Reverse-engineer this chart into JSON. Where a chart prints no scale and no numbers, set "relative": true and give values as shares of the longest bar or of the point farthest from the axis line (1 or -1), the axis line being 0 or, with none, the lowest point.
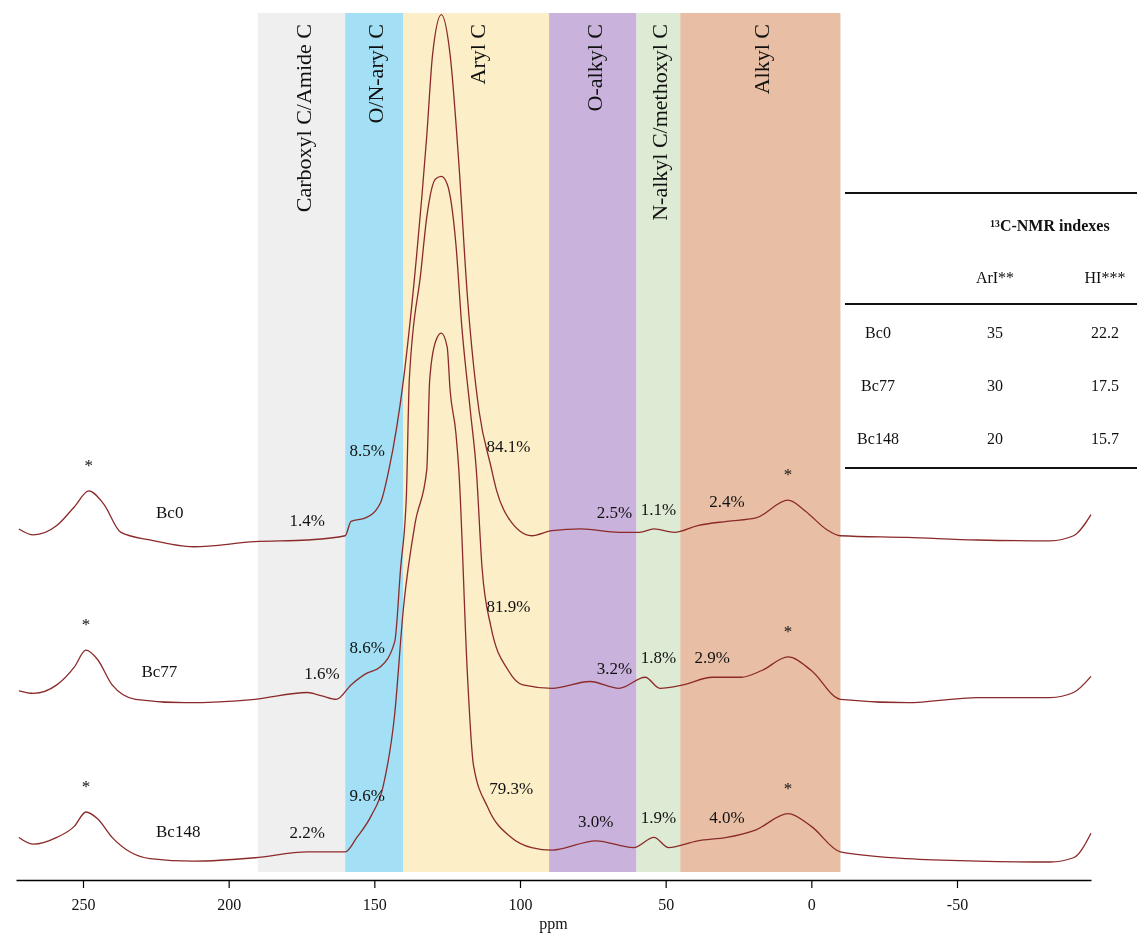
{
  "chart_data": [
    {
      "type": "line",
      "relative": true,
      "xlabel": "ppm",
      "xlim": [
        273,
        -96
      ],
      "xticks": [
        250,
        200,
        150,
        100,
        50,
        0,
        -50
      ],
      "marker": "none",
      "line_style": "solid",
      "bands": [
        {
          "axis": "x",
          "from": 190,
          "to": 160,
          "label": "Carboxyl C/Amide C",
          "color": "#efefef"
        },
        {
          "axis": "x",
          "from": 160,
          "to": 140,
          "label": "O/N-aryl C",
          "color": "#a3e0f5"
        },
        {
          "axis": "x",
          "from": 140,
          "to": 90,
          "label": "Aryl C",
          "color": "#fcefc8"
        },
        {
          "axis": "x",
          "from": 90,
          "to": 60,
          "label": "O-alkyl C",
          "color": "#c9b3dc"
        },
        {
          "axis": "x",
          "from": 60,
          "to": 45,
          "label": "N-alkyl C/methoxyl C",
          "color": "#deebd4"
        },
        {
          "axis": "x",
          "from": 45,
          "to": -10,
          "label": "Alkyl C",
          "color": "#e8bfa4"
        }
      ],
      "series": [
        {
          "name": "Bc0",
          "color": "#8b2a2a",
          "x": [
            272,
            267,
            259,
            253,
            248,
            243,
            237,
            227,
            212,
            191,
            173,
            160,
            158,
            153,
            148,
            145,
            140,
            136,
            132,
            130,
            127,
            124,
            121,
            118,
            114,
            110,
            108,
            104,
            96,
            89,
            79,
            66,
            59,
            54,
            47,
            39,
            29,
            19,
            8,
            2,
            -5,
            -10,
            -33,
            -57,
            -82,
            -90,
            -96
          ],
          "values": [
            0.393,
            0.386,
            0.397,
            0.419,
            0.438,
            0.423,
            0.389,
            0.38,
            0.372,
            0.378,
            0.38,
            0.385,
            0.402,
            0.406,
            0.423,
            0.463,
            0.569,
            0.697,
            0.857,
            0.953,
            1,
            0.953,
            0.825,
            0.665,
            0.531,
            0.467,
            0.438,
            0.406,
            0.385,
            0.391,
            0.393,
            0.389,
            0.389,
            0.393,
            0.389,
            0.397,
            0.402,
            0.406,
            0.427,
            0.414,
            0.393,
            0.385,
            0.383,
            0.38,
            0.379,
            0.385,
            0.41
          ]
        },
        {
          "name": "Bc77",
          "color": "#8b2a2a",
          "x": [
            272,
            267,
            259,
            253,
            249,
            245,
            240,
            232,
            215,
            191,
            173,
            168,
            163,
            158,
            153,
            148,
            143,
            141,
            139,
            138,
            134,
            132,
            129,
            127,
            125,
            122,
            120,
            117,
            115,
            113,
            110,
            104,
            99,
            89,
            76,
            66,
            57,
            52,
            44,
            34,
            24,
            17,
            8,
            0,
            -10,
            -33,
            -57,
            -82,
            -90,
            -96
          ],
          "values": [
            0.202,
            0.199,
            0.209,
            0.23,
            0.25,
            0.239,
            0.209,
            0.192,
            0.188,
            0.192,
            0.2,
            0.196,
            0.192,
            0.209,
            0.222,
            0.23,
            0.26,
            0.346,
            0.432,
            0.569,
            0.697,
            0.761,
            0.806,
            0.809,
            0.8,
            0.729,
            0.633,
            0.531,
            0.463,
            0.346,
            0.278,
            0.226,
            0.209,
            0.205,
            0.213,
            0.205,
            0.218,
            0.205,
            0.209,
            0.218,
            0.218,
            0.226,
            0.242,
            0.226,
            0.192,
            0.188,
            0.194,
            0.194,
            0.2,
            0.219
          ]
        },
        {
          "name": "Bc148",
          "color": "#8b2a2a",
          "x": [
            272,
            267,
            259,
            253,
            249,
            245,
            240,
            227,
            212,
            191,
            173,
            160,
            156,
            151,
            147,
            143,
            140,
            136,
            132,
            131,
            129,
            127,
            125,
            124,
            122,
            121,
            118,
            116,
            111,
            103,
            96,
            89,
            74,
            61,
            54,
            49,
            39,
            29,
            19,
            8,
            0,
            -10,
            -33,
            -57,
            -82,
            -90,
            -96
          ],
          "values": [
            0.029,
            0.021,
            0.029,
            0.042,
            0.059,
            0.051,
            0.029,
            0.004,
            0.001,
            0.005,
            0.012,
            0.012,
            0.029,
            0.055,
            0.089,
            0.175,
            0.3,
            0.4,
            0.463,
            0.569,
            0.614,
            0.624,
            0.608,
            0.557,
            0.506,
            0.463,
            0.218,
            0.115,
            0.064,
            0.029,
            0.017,
            0.014,
            0.025,
            0.017,
            0.029,
            0.017,
            0.025,
            0.029,
            0.038,
            0.057,
            0.042,
            0.012,
            0.004,
            0.001,
            0,
            0.005,
            0.034
          ]
        }
      ],
      "annotations": [
        {
          "text": "*",
          "x": 248,
          "y": 0.438
        },
        {
          "text": "*",
          "x": 8,
          "y": 0.427
        },
        {
          "text": "*",
          "x": 249,
          "y": 0.25
        },
        {
          "text": "*",
          "x": 8,
          "y": 0.242
        },
        {
          "text": "*",
          "x": 249,
          "y": 0.059
        },
        {
          "text": "*",
          "x": 8,
          "y": 0.057
        },
        "1.4%",
        "8.5%",
        "84.1%",
        "2.5%",
        "1.1%",
        "2.4%",
        "1.6%",
        "8.6%",
        "81.9%",
        "3.2%",
        "1.8%",
        "2.9%",
        "2.2%",
        "9.6%",
        "79.3%",
        "3.0%",
        "1.9%",
        "4.0%"
      ]
    },
    {
      "type": "other",
      "title": "¹³C-NMR indexes",
      "categories": [
        "Bc0",
        "Bc77",
        "Bc148"
      ],
      "data_labels": true,
      "series": [
        {
          "name": "ArI**",
          "values": [
            35,
            30,
            20
          ]
        },
        {
          "name": "HI***",
          "values": [
            22.2,
            17.5,
            15.7
          ]
        }
      ]
    }
  ]
}
